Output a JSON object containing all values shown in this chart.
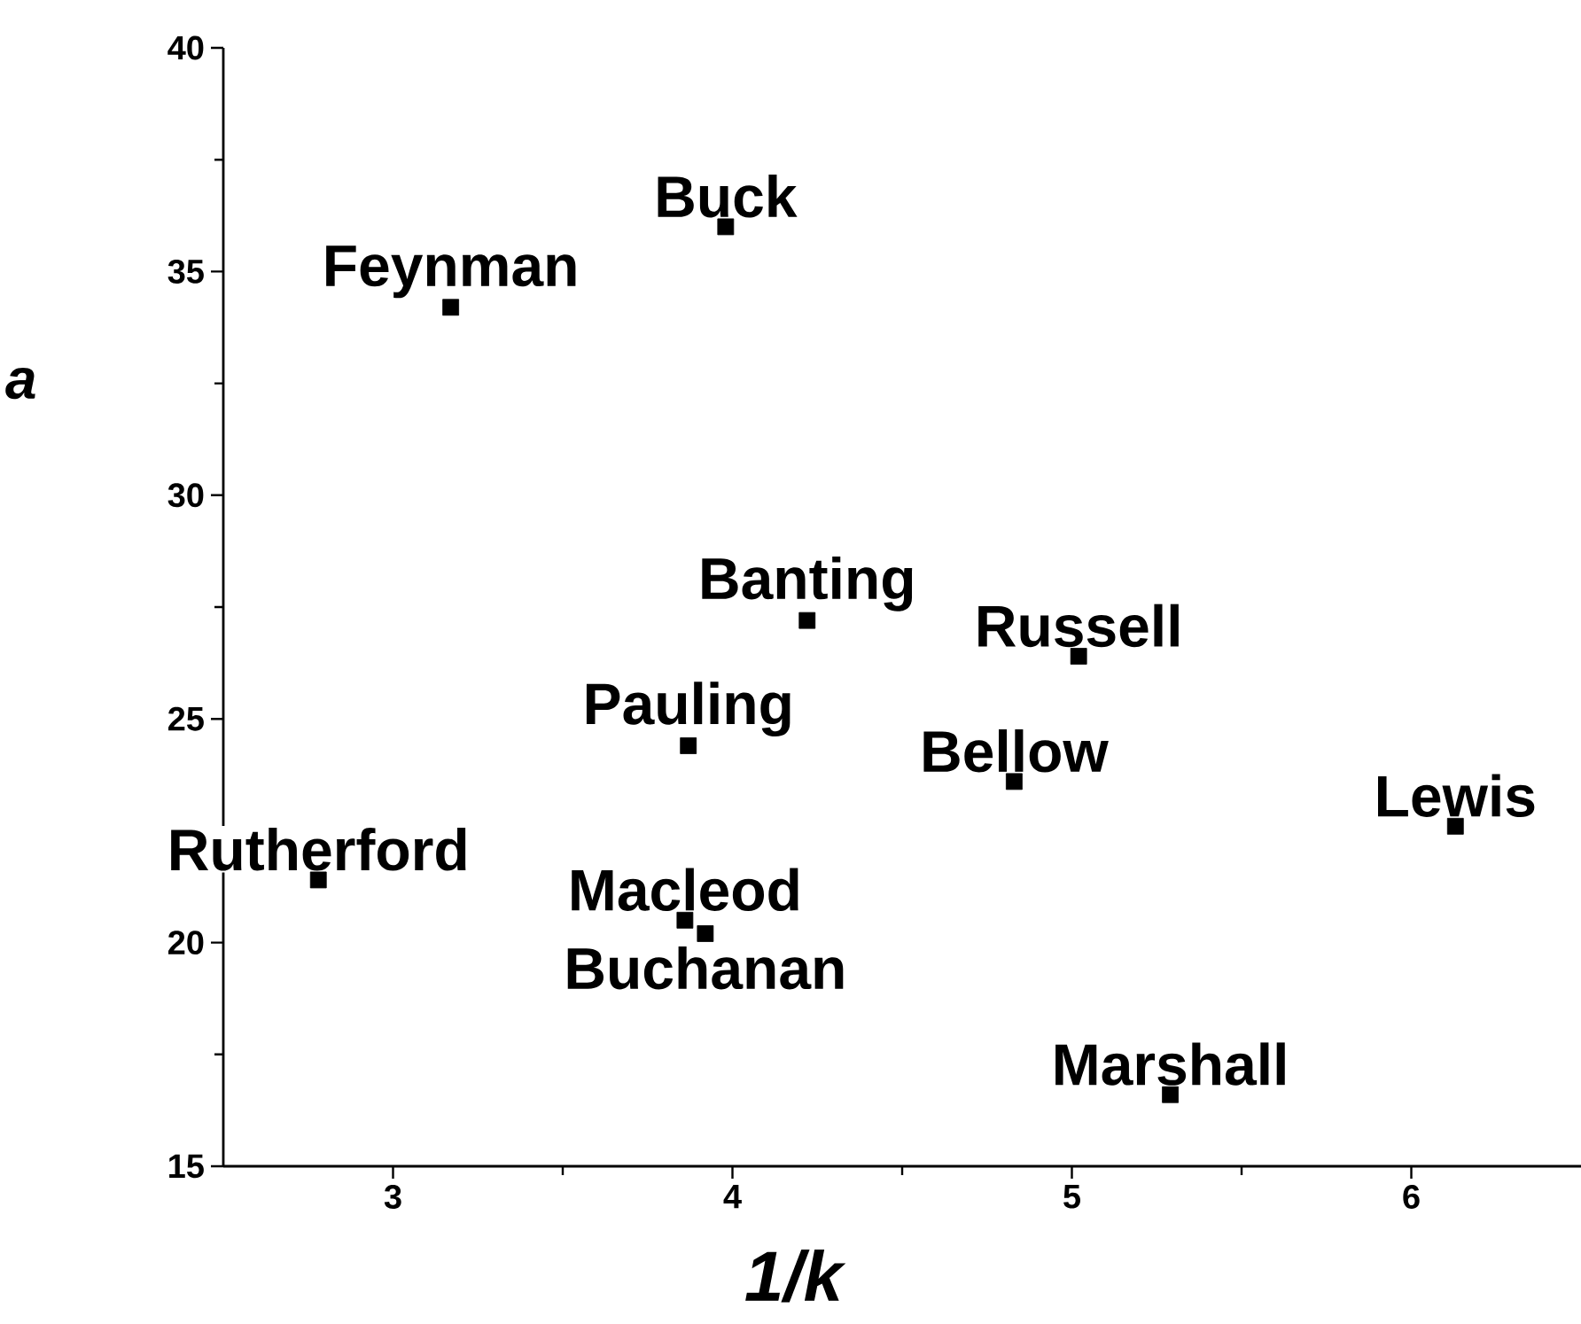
{
  "chart_data": {
    "type": "scatter",
    "xlabel": "1/k",
    "ylabel": "a",
    "x": [
      3.17,
      3.98,
      4.22,
      5.02,
      3.87,
      4.83,
      6.13,
      2.78,
      3.86,
      3.92,
      5.29
    ],
    "values": [
      34.2,
      36.0,
      27.2,
      26.4,
      24.4,
      23.6,
      22.6,
      21.4,
      20.5,
      20.2,
      16.6
    ],
    "color": "#000000",
    "marker": "square",
    "xlim": [
      2.5,
      6.5
    ],
    "ylim": [
      15,
      40
    ],
    "xticks": [
      3,
      {
        "value": 3.5,
        "label": null
      },
      4,
      {
        "value": 4.5,
        "label": null
      },
      5,
      {
        "value": 5.5,
        "label": null
      },
      6
    ],
    "yticks": [
      15,
      {
        "value": 17.5,
        "label": null
      },
      20,
      {
        "value": 22.5,
        "label": null
      },
      25,
      {
        "value": 27.5,
        "label": null
      },
      30,
      {
        "value": 32.5,
        "label": null
      },
      35,
      {
        "value": 37.5,
        "label": null
      },
      40
    ],
    "grid": false,
    "annotations": [
      {
        "text": "Feynman",
        "x": 3.17,
        "y": 34.2
      },
      {
        "text": "Buck",
        "x": 3.98,
        "y": 36.0
      },
      {
        "text": "Banting",
        "x": 4.22,
        "y": 27.2
      },
      {
        "text": "Russell",
        "x": 5.02,
        "y": 26.4
      },
      {
        "text": "Pauling",
        "x": 3.87,
        "y": 24.4
      },
      {
        "text": "Bellow",
        "x": 4.83,
        "y": 23.6
      },
      {
        "text": "Lewis",
        "x": 6.13,
        "y": 22.6
      },
      {
        "text": "Rutherford",
        "x": 2.78,
        "y": 21.4
      },
      {
        "text": "Macleod",
        "x": 3.86,
        "y": 20.5
      },
      {
        "text": "Buchanan",
        "x": 3.92,
        "y": 20.2
      },
      {
        "text": "Marshall",
        "x": 5.29,
        "y": 16.6
      }
    ]
  }
}
